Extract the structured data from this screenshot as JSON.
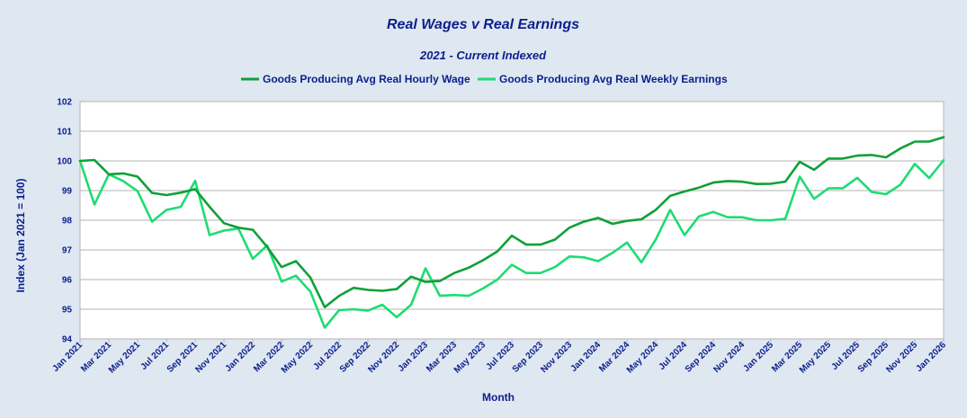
{
  "colors": {
    "background": "#dfe7f1",
    "plot_background": "#ffffff",
    "grid": "#b3b3b3",
    "text": "#0b1f8c",
    "series_wage": "#0fa038",
    "series_earnings": "#1edc72"
  },
  "chart_data": {
    "type": "line",
    "title": "Real Wages v Real Earnings",
    "subtitle": "2021 - Current Indexed",
    "xlabel": "Month",
    "ylabel": "Index (Jan 2021 = 100)",
    "ylim": [
      94,
      102
    ],
    "yticks": [
      94,
      95,
      96,
      97,
      98,
      99,
      100,
      101,
      102
    ],
    "legend_position": "top",
    "grid": true,
    "x_tick_labels": [
      "Jan 2021",
      "Mar 2021",
      "May 2021",
      "Jul 2021",
      "Sep 2021",
      "Nov 2021",
      "Jan 2022",
      "Mar 2022",
      "May 2022",
      "Jul 2022",
      "Sep 2022",
      "Nov 2022",
      "Jan 2023",
      "Mar 2023",
      "May 2023",
      "Jul 2023",
      "Sep 2023",
      "Nov 2023",
      "Jan 2024",
      "Mar 2024",
      "May 2024",
      "Jul 2024",
      "Sep 2024",
      "Nov 2024",
      "Jan 2025",
      "Mar 2025",
      "May 2025",
      "Jul 2025",
      "Sep 2025",
      "Nov 2025",
      "Jan 2026"
    ],
    "series": [
      {
        "name": "Goods Producing Avg Real Hourly Wage",
        "color": "#0fa038",
        "values": [
          100.0,
          100.03,
          99.55,
          99.58,
          99.47,
          98.92,
          98.85,
          98.93,
          99.05,
          98.45,
          97.9,
          97.75,
          97.68,
          97.1,
          96.42,
          96.62,
          96.07,
          95.07,
          95.45,
          95.72,
          95.65,
          95.62,
          95.68,
          96.1,
          95.92,
          95.95,
          96.22,
          96.4,
          96.65,
          96.95,
          97.48,
          97.18,
          97.18,
          97.35,
          97.75,
          97.95,
          98.08,
          97.88,
          97.98,
          98.03,
          98.35,
          98.82,
          98.97,
          99.1,
          99.27,
          99.32,
          99.3,
          99.22,
          99.23,
          99.3,
          99.97,
          99.7,
          100.08,
          100.08,
          100.18,
          100.2,
          100.12,
          100.42,
          100.65,
          100.65,
          100.8
        ]
      },
      {
        "name": "Goods Producing Avg Real Weekly Earnings",
        "color": "#1edc72",
        "values": [
          100.0,
          98.53,
          99.55,
          99.32,
          98.98,
          97.95,
          98.35,
          98.45,
          99.33,
          97.5,
          97.65,
          97.72,
          96.7,
          97.15,
          95.93,
          96.13,
          95.6,
          94.38,
          94.97,
          95.0,
          94.95,
          95.15,
          94.73,
          95.15,
          96.38,
          95.45,
          95.48,
          95.45,
          95.7,
          96.0,
          96.5,
          96.22,
          96.22,
          96.42,
          96.78,
          96.75,
          96.62,
          96.9,
          97.25,
          96.58,
          97.35,
          98.35,
          97.5,
          98.13,
          98.28,
          98.1,
          98.1,
          98.0,
          98.0,
          98.05,
          99.47,
          98.72,
          99.08,
          99.08,
          99.43,
          98.95,
          98.88,
          99.2,
          99.9,
          99.42,
          100.02
        ]
      }
    ]
  }
}
